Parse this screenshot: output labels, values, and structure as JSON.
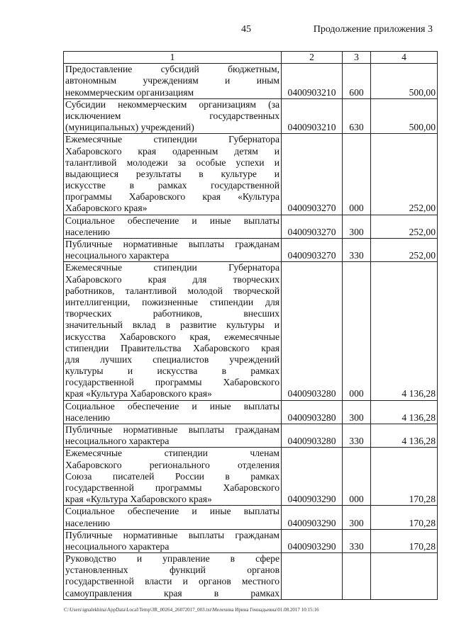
{
  "header": {
    "page_number": "45",
    "continuation": "Продолжение приложения 3"
  },
  "table": {
    "columns": [
      "1",
      "2",
      "3",
      "4"
    ],
    "rows": [
      {
        "lines": [
          "Предоставление субсидий бюджетным,",
          "автономным учреждениям и иным",
          "некоммерческим организациям"
        ],
        "code": "0400903210",
        "type": "600",
        "amount": "500,00"
      },
      {
        "lines": [
          "Субсидии некоммерческим организациям (за",
          "исключением государственных",
          "(муниципальных) учреждений)"
        ],
        "code": "0400903210",
        "type": "630",
        "amount": "500,00"
      },
      {
        "lines": [
          "Ежемесячные стипендии Губернатора",
          "Хабаровского края одаренным детям и",
          "талантливой молодежи за особые успехи и",
          "выдающиеся результаты в культуре и",
          "искусстве в рамках государственной",
          "программы Хабаровского края «Культура",
          "Хабаровского края»"
        ],
        "code": "0400903270",
        "type": "000",
        "amount": "252,00"
      },
      {
        "lines": [
          "Социальное обеспечение и иные выплаты",
          "населению"
        ],
        "code": "0400903270",
        "type": "300",
        "amount": "252,00"
      },
      {
        "lines": [
          "Публичные нормативные выплаты гражданам",
          "несоциального характера"
        ],
        "code": "0400903270",
        "type": "330",
        "amount": "252,00"
      },
      {
        "lines": [
          "Ежемесячные стипендии Губернатора",
          "Хабаровского края для творческих",
          "работников, талантливой молодой творческой",
          "интеллигенции, пожизненные стипендии для",
          "творческих работников, внесших",
          "значительный вклад в развитие культуры и",
          "искусства Хабаровского края, ежемесячные",
          "стипендии Правительства Хабаровского края",
          "для лучших специалистов учреждений",
          "культуры и искусства в рамках",
          "государственной программы Хабаровского",
          "края «Культура Хабаровского края»"
        ],
        "code": "0400903280",
        "type": "000",
        "amount": "4 136,28"
      },
      {
        "lines": [
          "Социальное обеспечение и иные выплаты",
          "населению"
        ],
        "code": "0400903280",
        "type": "300",
        "amount": "4 136,28"
      },
      {
        "lines": [
          "Публичные нормативные выплаты гражданам",
          "несоциального характера"
        ],
        "code": "0400903280",
        "type": "330",
        "amount": "4 136,28"
      },
      {
        "lines": [
          "Ежемесячные стипендии членам",
          "Хабаровского регионального отделения",
          "Союза писателей России в рамках",
          "государственной программы Хабаровского",
          "края «Культура Хабаровского края»"
        ],
        "code": "0400903290",
        "type": "000",
        "amount": "170,28"
      },
      {
        "lines": [
          "Социальное обеспечение и иные выплаты",
          "населению"
        ],
        "code": "0400903290",
        "type": "300",
        "amount": "170,28"
      },
      {
        "lines": [
          "Публичные нормативные выплаты гражданам",
          "несоциального характера"
        ],
        "code": "0400903290",
        "type": "330",
        "amount": "170,28"
      },
      {
        "lines": [
          "Руководство и управление в сфере",
          "установленных функций органов",
          "государственной власти и органов местного",
          "самоуправления края в рамках"
        ],
        "code": "",
        "type": "",
        "amount": "",
        "continues": true
      }
    ]
  },
  "footer": {
    "path": "C:\\Users\\ignalekhina\\AppData\\Local\\Temp\\3R_00264_26072017_003.txt\\Мелехина Ирина Геннадьевна\\01.08.2017 10:15:16"
  }
}
